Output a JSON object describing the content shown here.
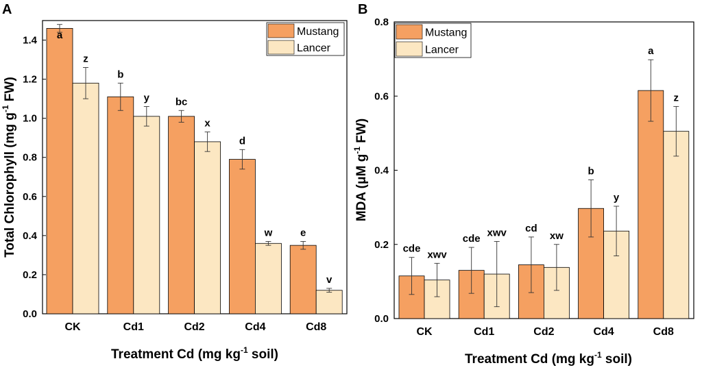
{
  "chart_data": [
    {
      "panel": "A",
      "type": "bar",
      "categories": [
        "CK",
        "Cd1",
        "Cd2",
        "Cd4",
        "Cd8"
      ],
      "series": [
        {
          "name": "Mustang",
          "color": "#F5A061",
          "values": [
            1.46,
            1.11,
            1.01,
            0.79,
            0.35
          ],
          "errors": [
            0.02,
            0.07,
            0.03,
            0.05,
            0.02
          ],
          "labels": [
            "a",
            "b",
            "bc",
            "d",
            "e"
          ]
        },
        {
          "name": "Lancer",
          "color": "#FCE7C2",
          "values": [
            1.18,
            1.01,
            0.88,
            0.36,
            0.12
          ],
          "errors": [
            0.08,
            0.05,
            0.05,
            0.01,
            0.01
          ],
          "labels": [
            "z",
            "y",
            "x",
            "w",
            "v"
          ]
        }
      ],
      "ylim": [
        0,
        1.5
      ],
      "yticks": [
        "0.0",
        "0.2",
        "0.4",
        "0.6",
        "0.8",
        "1.0",
        "1.2",
        "1.4"
      ],
      "xlabel_main": "Treatment Cd (mg kg",
      "xlabel_sup": "-1",
      "xlabel_end": " soil)",
      "ylabel_main": "Total Chlorophyll (mg g",
      "ylabel_sup": "-1",
      "ylabel_end": " FW)",
      "legend_position": "top-right"
    },
    {
      "panel": "B",
      "type": "bar",
      "categories": [
        "CK",
        "Cd1",
        "Cd2",
        "Cd4",
        "Cd8"
      ],
      "series": [
        {
          "name": "Mustang",
          "color": "#F5A061",
          "values": [
            0.115,
            0.13,
            0.145,
            0.297,
            0.615
          ],
          "errors": [
            0.05,
            0.062,
            0.075,
            0.077,
            0.083
          ],
          "labels": [
            "cde",
            "cde",
            "cd",
            "b",
            "a"
          ]
        },
        {
          "name": "Lancer",
          "color": "#FCE7C2",
          "values": [
            0.104,
            0.12,
            0.138,
            0.236,
            0.505
          ],
          "errors": [
            0.045,
            0.088,
            0.062,
            0.067,
            0.067
          ],
          "labels": [
            "xwv",
            "xwv",
            "xw",
            "y",
            "z"
          ]
        }
      ],
      "ylim": [
        0,
        0.8
      ],
      "yticks": [
        "0.0",
        "0.2",
        "0.4",
        "0.6",
        "0.8"
      ],
      "xlabel_main": "Treatment Cd (mg kg",
      "xlabel_sup": "-1",
      "xlabel_end": " soil)",
      "ylabel_main": "MDA (μM g",
      "ylabel_sup": "-1",
      "ylabel_end": " FW)",
      "legend_position": "top-left"
    }
  ]
}
